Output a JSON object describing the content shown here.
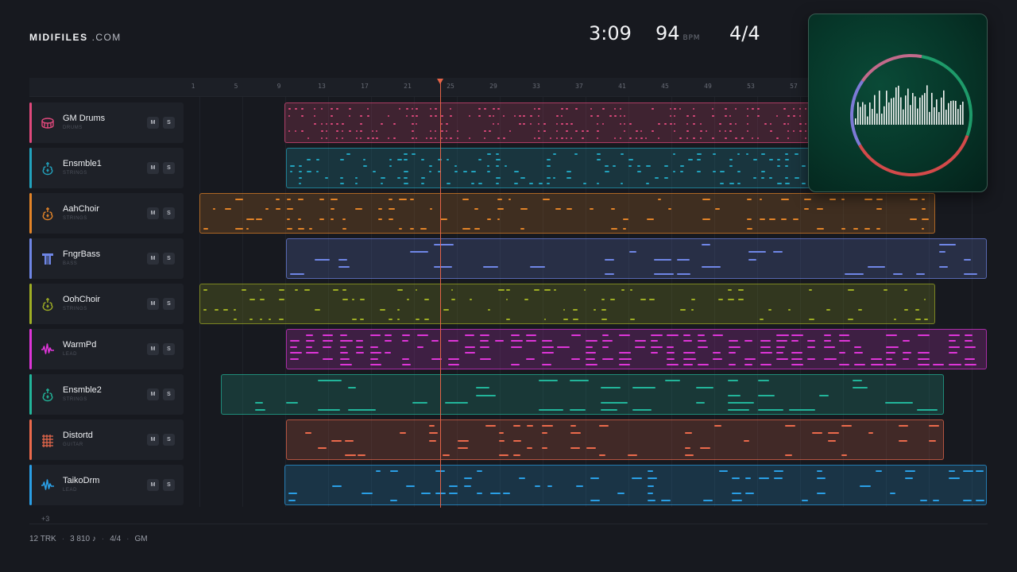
{
  "header": {
    "brand": "MIDIFILES",
    "brand_suffix": ".COM",
    "time": "3:09",
    "tempo": "94",
    "tempo_unit": "BPM",
    "meter": "4/4"
  },
  "ruler": {
    "bars": [
      "1",
      "5",
      "9",
      "13",
      "17",
      "21",
      "25",
      "29",
      "33",
      "37",
      "41",
      "45",
      "49",
      "53",
      "57"
    ]
  },
  "playhead": {
    "bar": 24
  },
  "tracks": [
    {
      "name": "GM Drums",
      "type": "DRUMS",
      "color": "#e0497c",
      "icon": "drum-icon"
    },
    {
      "name": "Ensmble1",
      "type": "STRINGS",
      "color": "#22a3be",
      "icon": "violin-icon"
    },
    {
      "name": "AahChoir",
      "type": "STRINGS",
      "color": "#e38428",
      "icon": "violin-icon"
    },
    {
      "name": "FngrBass",
      "type": "BASS",
      "color": "#6f86e6",
      "icon": "bass-icon"
    },
    {
      "name": "OohChoir",
      "type": "STRINGS",
      "color": "#9fae24",
      "icon": "violin-icon"
    },
    {
      "name": "WarmPd",
      "type": "LEAD",
      "color": "#de35d8",
      "icon": "waveform-icon"
    },
    {
      "name": "Ensmble2",
      "type": "STRINGS",
      "color": "#22b59a",
      "icon": "violin-icon"
    },
    {
      "name": "Distortd",
      "type": "GUITAR",
      "color": "#ec6a4c",
      "icon": "guitar-icon"
    },
    {
      "name": "TaikoDrm",
      "type": "LEAD",
      "color": "#2a9fe6",
      "icon": "waveform-icon"
    }
  ],
  "buttons": {
    "mute": "M",
    "solo": "S"
  },
  "more_tracks": "+3",
  "footer": {
    "tracks": "12 TRK",
    "notes": "3 810 ♪",
    "meter": "4/4",
    "standard": "GM"
  },
  "visualizer": {
    "ring_colors": [
      "#1e9b6a",
      "#d34a4a",
      "#7c7ad6",
      "#c26a8b"
    ]
  }
}
